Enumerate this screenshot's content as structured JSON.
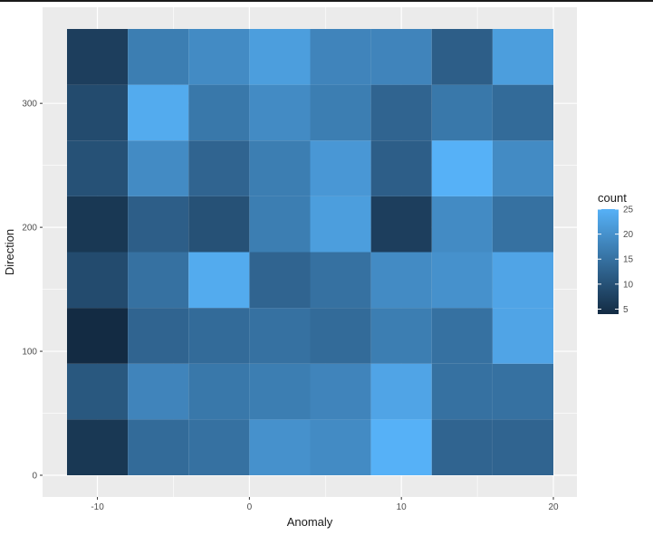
{
  "chart_data": {
    "type": "heatmap",
    "xlabel": "Anomaly",
    "ylabel": "Direction",
    "xlim": [
      -12,
      20
    ],
    "ylim": [
      0,
      360
    ],
    "x_ticks": [
      -10,
      0,
      10,
      20
    ],
    "y_ticks": [
      0,
      100,
      200,
      300
    ],
    "x_bins": [
      -12,
      -8,
      -4,
      0,
      4,
      8,
      12,
      16,
      20
    ],
    "y_bins": [
      0,
      45,
      90,
      135,
      180,
      225,
      270,
      315,
      360
    ],
    "counts": [
      [
        6,
        14,
        15,
        20,
        19,
        25,
        13,
        13
      ],
      [
        11,
        18,
        16,
        17,
        18,
        23,
        15,
        15
      ],
      [
        4,
        13,
        14,
        15,
        14,
        17,
        15,
        23
      ],
      [
        9,
        15,
        24,
        13,
        15,
        19,
        20,
        23
      ],
      [
        6,
        12,
        10,
        17,
        22,
        7,
        19,
        15
      ],
      [
        10,
        19,
        13,
        17,
        21,
        12,
        25,
        19
      ],
      [
        9,
        24,
        16,
        19,
        17,
        13,
        16,
        14
      ],
      [
        7,
        17,
        19,
        22,
        18,
        18,
        12,
        22
      ]
    ],
    "legend": {
      "title": "count",
      "ticks": [
        5,
        10,
        15,
        20,
        25
      ],
      "min": 4,
      "max": 25,
      "low_color": "#132B43",
      "high_color": "#56B1F7"
    },
    "panel_background": "#EBEBEB",
    "grid": true
  }
}
